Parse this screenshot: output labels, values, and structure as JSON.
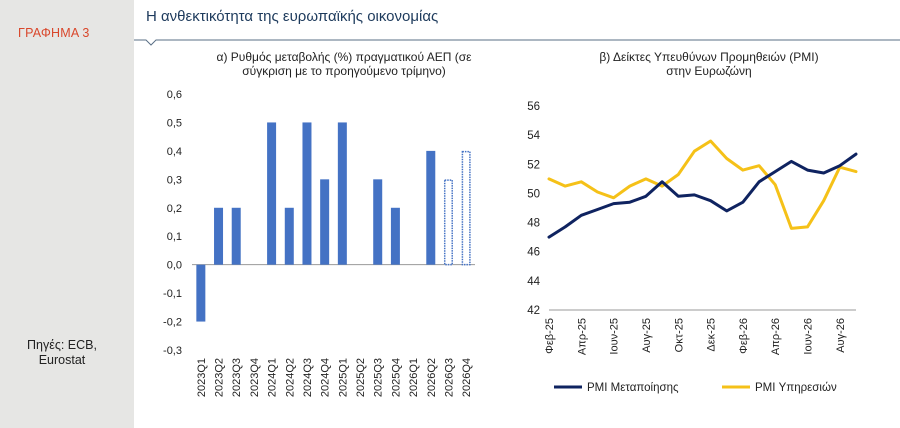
{
  "sidebar": {
    "label": "ΓΡΑΦΗΜΑ 3",
    "sources_line1": "Πηγές: ECB,",
    "sources_line2": "Eurostat"
  },
  "header": {
    "title": "Η ανθεκτικότητα της ευρωπαϊκής οικονομίας"
  },
  "colors": {
    "bar": "#4472c4",
    "manufacturing": "#0f2360",
    "services": "#f5c118",
    "title": "#1d3a5c",
    "sidebar_label": "#d9472b"
  },
  "chart_data": [
    {
      "type": "bar",
      "title": "α) Ρυθμός μεταβολής (%) πραγματικού ΑΕΠ (σε σύγκριση με το προηγούμενο τρίμηνο)",
      "title_line1": "α) Ρυθμός μεταβολής (%) πραγματικού ΑΕΠ (σε",
      "title_line2": "σύγκριση με το προηγούμενο τρίμηνο)",
      "categories": [
        "2023Q1",
        "2023Q2",
        "2023Q3",
        "2023Q4",
        "2024Q1",
        "2024Q2",
        "2024Q3",
        "2024Q4",
        "2025Q1",
        "2025Q2",
        "2025Q3",
        "2025Q4",
        "2026Q1",
        "2026Q2",
        "2026Q3",
        "2026Q4"
      ],
      "values": [
        -0.2,
        0.2,
        0.2,
        0.0,
        0.5,
        0.2,
        0.5,
        0.3,
        0.5,
        0.0,
        0.3,
        0.2,
        0.0,
        0.4,
        0.3,
        0.4
      ],
      "hollow": [
        false,
        false,
        false,
        false,
        false,
        false,
        false,
        false,
        false,
        false,
        false,
        false,
        false,
        false,
        true,
        true
      ],
      "ylim": [
        -0.3,
        0.6
      ],
      "yticks": [
        "-0,3",
        "-0,2",
        "-0,1",
        "0,0",
        "0,1",
        "0,2",
        "0,3",
        "0,4",
        "0,5",
        "0,6"
      ],
      "grid": false
    },
    {
      "type": "line",
      "title": "β) Δείκτες Υπευθύνων Προμηθειών (PMI) στην Ευρωζώνη",
      "title_line1": "β) Δείκτες Υπευθύνων Προμηθειών (PMI)",
      "title_line2": "στην Ευρωζώνη",
      "x_labels": [
        "Φεβ-25",
        "Απρ-25",
        "Ιουν-25",
        "Αυγ-25",
        "Οκτ-25",
        "Δεκ-25",
        "Φεβ-26",
        "Απρ-26",
        "Ιουν-26",
        "Αυγ-26"
      ],
      "ylim": [
        42,
        56
      ],
      "yticks": [
        "42",
        "44",
        "46",
        "48",
        "50",
        "52",
        "54",
        "56"
      ],
      "legend": "bottom",
      "grid": false,
      "series": [
        {
          "name": "PMI Μεταποίησης",
          "values": [
            47.0,
            47.7,
            48.5,
            48.9,
            49.3,
            49.4,
            49.8,
            50.8,
            49.8,
            49.9,
            49.5,
            48.8,
            49.4,
            50.8,
            51.5,
            52.2,
            51.6,
            51.4,
            51.9,
            52.7
          ]
        },
        {
          "name": "PMI Υπηρεσιών",
          "values": [
            51.0,
            50.5,
            50.8,
            50.1,
            49.7,
            50.5,
            51.0,
            50.5,
            51.3,
            52.9,
            53.6,
            52.4,
            51.6,
            51.9,
            50.6,
            47.6,
            47.7,
            49.5,
            51.8,
            51.5
          ]
        }
      ]
    }
  ]
}
